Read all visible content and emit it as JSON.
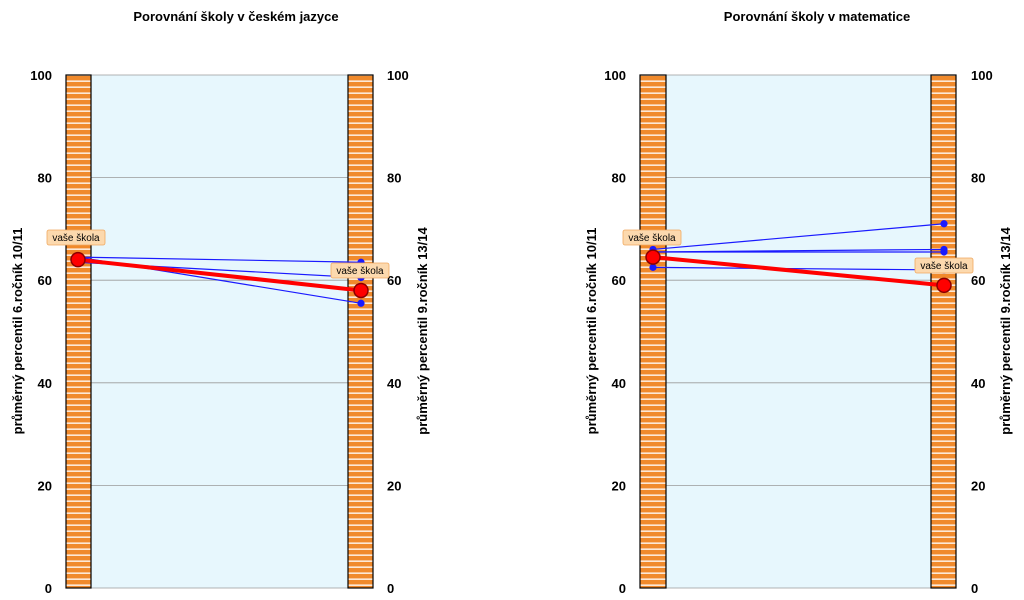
{
  "colors": {
    "plot_background": "#e7f7fd",
    "gridline": "#9a9a9a",
    "bar_fill": "#f08a2c",
    "bar_stripe": "#ffffff",
    "bar_border": "#000000",
    "school_line": "#ff0000",
    "school_marker_fill": "#ff0000",
    "school_marker_stroke": "#8a0000",
    "other_line": "#1a1aff",
    "other_marker": "#1a1aff",
    "callout_fill": "#fcd9ae",
    "callout_border": "#f0a860"
  },
  "chart_data": [
    {
      "type": "line",
      "title": "Porovnání školy v českém jazyce",
      "ylabel_left": "průměrný percentil 6.ročník 10/11",
      "ylabel_right": "průměrný percentil 9.ročník 13/14",
      "ylim": [
        0,
        100
      ],
      "yticks": [
        "0",
        "20",
        "40",
        "60",
        "80",
        "100"
      ],
      "grid": true,
      "series": [
        {
          "role": "school",
          "values": [
            64,
            58
          ],
          "label": "vaše škola"
        },
        {
          "role": "other",
          "values": [
            64.5,
            63.5
          ]
        },
        {
          "role": "other",
          "values": [
            63.5,
            60.5
          ]
        },
        {
          "role": "other",
          "values": [
            64.5,
            55.5
          ]
        }
      ],
      "callout_text": "vaše škola"
    },
    {
      "type": "line",
      "title": "Porovnání školy v matematice",
      "ylabel_left": "průměrný percentil 6.ročník 10/11",
      "ylabel_right": "průměrný percentil 9.ročník 13/14",
      "ylim": [
        0,
        100
      ],
      "yticks": [
        "0",
        "20",
        "40",
        "60",
        "80",
        "100"
      ],
      "grid": true,
      "series": [
        {
          "role": "school",
          "values": [
            64.5,
            59
          ],
          "label": "vaše škola"
        },
        {
          "role": "other",
          "values": [
            66,
            71
          ]
        },
        {
          "role": "other",
          "values": [
            65.5,
            65.5
          ]
        },
        {
          "role": "other",
          "values": [
            65.5,
            66
          ]
        },
        {
          "role": "other",
          "values": [
            62.5,
            62
          ]
        }
      ],
      "callout_text": "vaše škola"
    }
  ]
}
